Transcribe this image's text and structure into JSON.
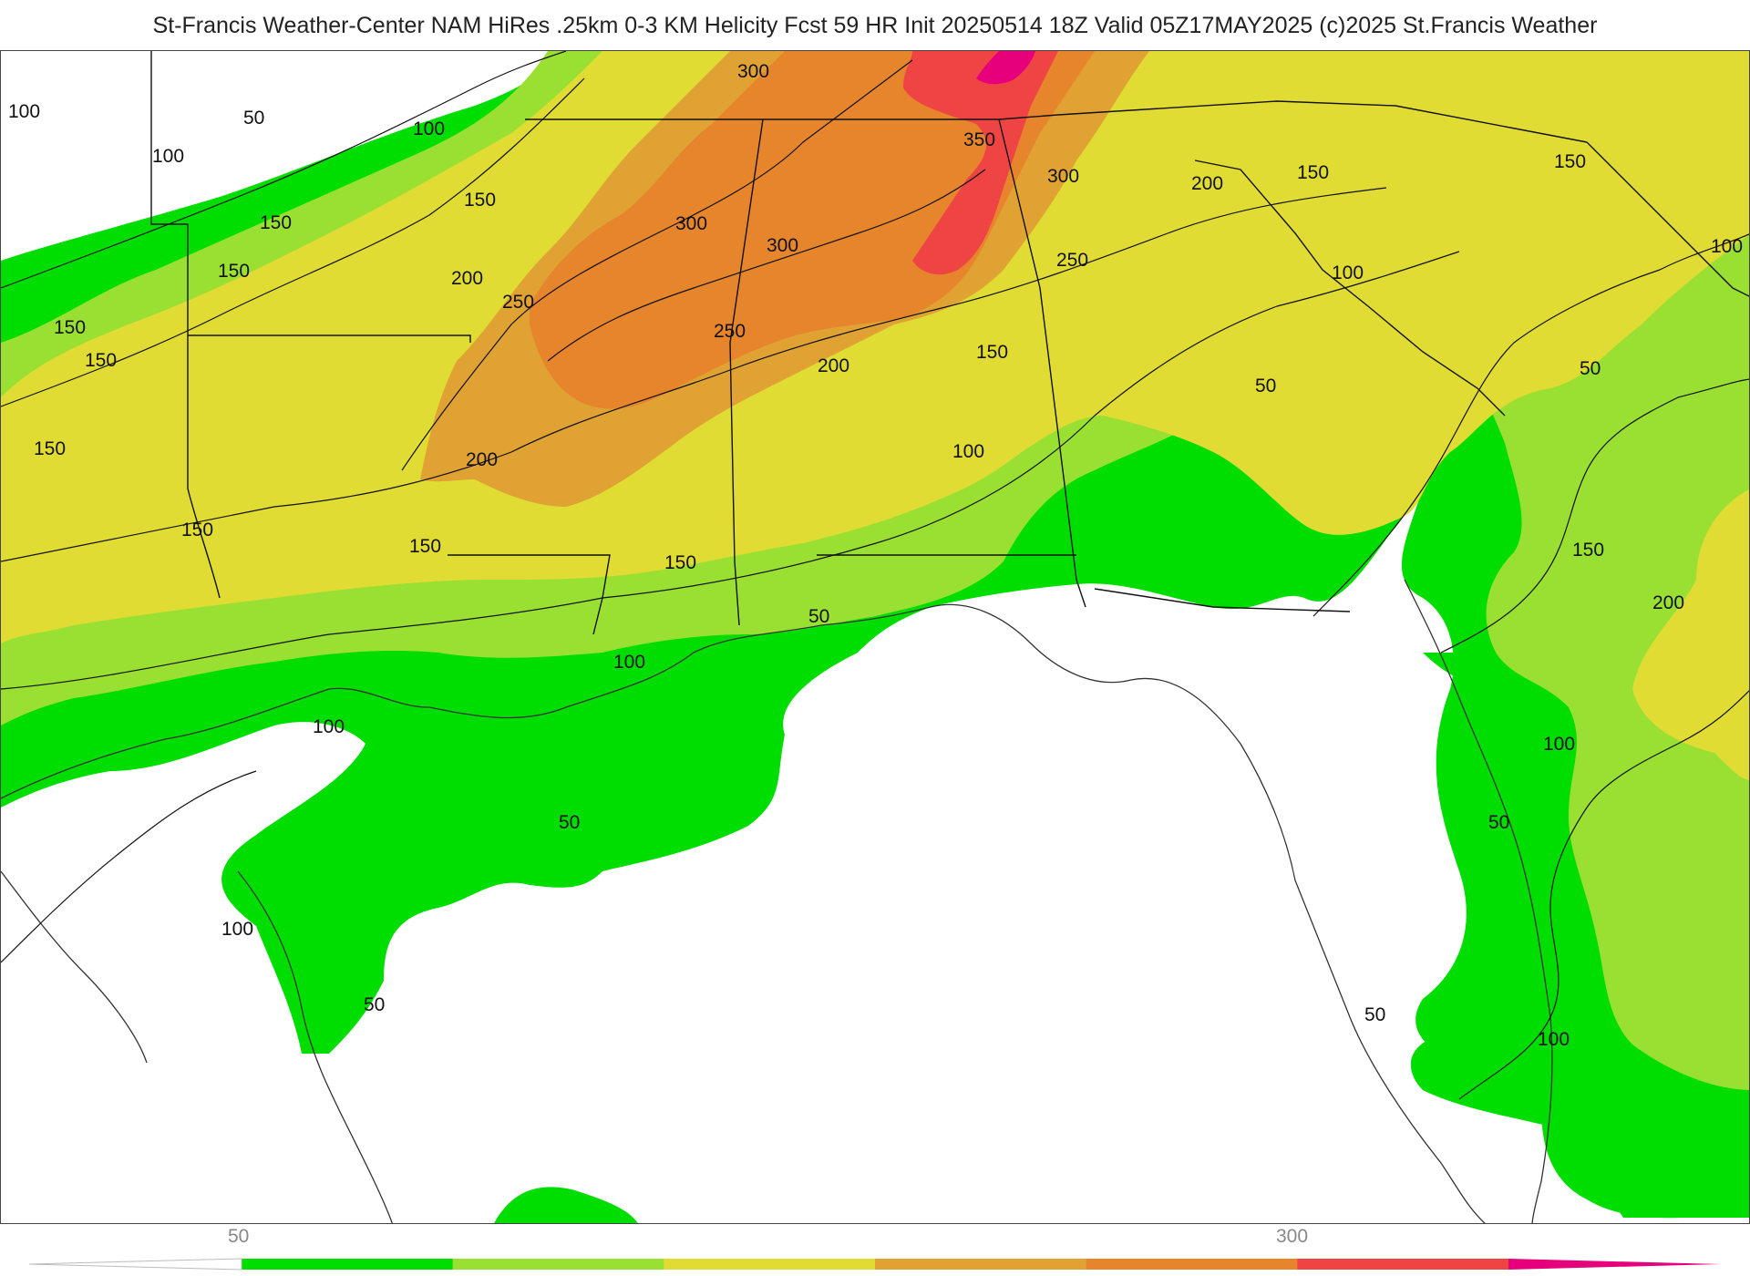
{
  "header": {
    "title": "St-Francis Weather-Center NAM HiRes .25km 0-3 KM Helicity Fcst 59 HR Init 20250514 18Z  Valid 05Z17MAY2025    (c)2025 St.Francis Weather"
  },
  "colors": {
    "c50": "#00dd00",
    "c100": "#99e033",
    "c150": "#e0dc33",
    "c200": "#e0a233",
    "c250": "#e6852c",
    "c300": "#ef4444",
    "c350": "#e6007a",
    "land": "#ffffff",
    "border": "#111111"
  },
  "colorbar": {
    "tick_labels": [
      "50",
      "300"
    ],
    "segments": [
      "#00dd00",
      "#99e033",
      "#e0dc33",
      "#e0a233",
      "#e6852c",
      "#ef4444"
    ],
    "low_end": "#ffffff",
    "high_end": "#e6007a"
  },
  "contour_labels": [
    {
      "text": "100"
    },
    {
      "text": "50"
    },
    {
      "text": "100"
    },
    {
      "text": "100"
    },
    {
      "text": "150"
    },
    {
      "text": "150"
    },
    {
      "text": "150"
    },
    {
      "text": "150"
    },
    {
      "text": "150"
    },
    {
      "text": "150"
    },
    {
      "text": "150"
    },
    {
      "text": "200"
    },
    {
      "text": "250"
    },
    {
      "text": "300"
    },
    {
      "text": "300"
    },
    {
      "text": "300"
    },
    {
      "text": "350"
    },
    {
      "text": "300"
    },
    {
      "text": "250"
    },
    {
      "text": "200"
    },
    {
      "text": "250"
    },
    {
      "text": "200"
    },
    {
      "text": "150"
    },
    {
      "text": "200"
    },
    {
      "text": "150"
    },
    {
      "text": "100"
    },
    {
      "text": "150"
    },
    {
      "text": "150"
    },
    {
      "text": "100"
    },
    {
      "text": "150"
    },
    {
      "text": "100"
    },
    {
      "text": "50"
    },
    {
      "text": "50"
    },
    {
      "text": "50"
    },
    {
      "text": "100"
    },
    {
      "text": "100"
    },
    {
      "text": "100"
    },
    {
      "text": "50"
    },
    {
      "text": "50"
    },
    {
      "text": "150"
    },
    {
      "text": "200"
    },
    {
      "text": "100"
    },
    {
      "text": "50"
    },
    {
      "text": "50"
    },
    {
      "text": "100"
    }
  ]
}
